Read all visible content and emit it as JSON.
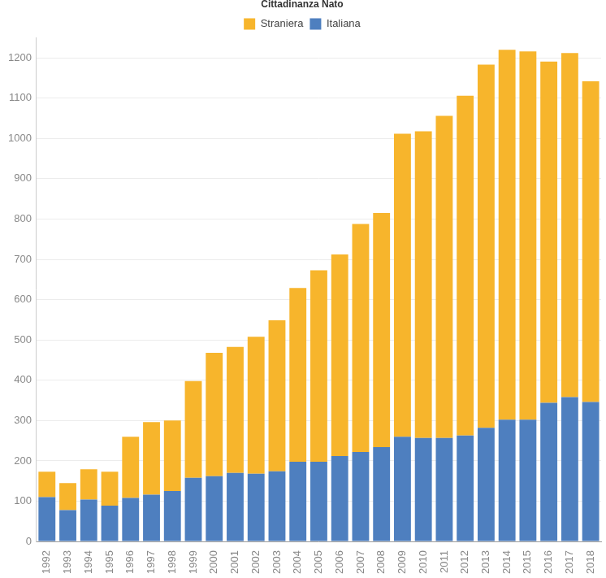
{
  "chart_data": {
    "type": "bar",
    "legend_title": "Cittadinanza Nato",
    "categories": [
      "1992",
      "1993",
      "1994",
      "1995",
      "1996",
      "1997",
      "1998",
      "1999",
      "2000",
      "2001",
      "2002",
      "2003",
      "2004",
      "2005",
      "2006",
      "2007",
      "2008",
      "2009",
      "2010",
      "2011",
      "2012",
      "2013",
      "2014",
      "2015",
      "2016",
      "2017",
      "2018"
    ],
    "series": [
      {
        "name": "Italiana",
        "color": "#4e7fbf",
        "values": [
          110,
          78,
          104,
          89,
          108,
          116,
          125,
          158,
          162,
          170,
          168,
          174,
          198,
          198,
          212,
          222,
          234,
          260,
          257,
          257,
          263,
          282,
          302,
          302,
          344,
          358,
          346
        ]
      },
      {
        "name": "Straniera",
        "color": "#f7b52c",
        "values": [
          63,
          67,
          75,
          84,
          152,
          180,
          175,
          240,
          306,
          313,
          340,
          375,
          431,
          475,
          500,
          566,
          581,
          752,
          761,
          799,
          843,
          901,
          918,
          914,
          847,
          854,
          796
        ]
      }
    ],
    "ylim": [
      0,
      1250
    ],
    "yticks": [
      0,
      100,
      200,
      300,
      400,
      500,
      600,
      700,
      800,
      900,
      1000,
      1100,
      1200
    ],
    "stacked": true,
    "grid": true,
    "legend": "top"
  }
}
